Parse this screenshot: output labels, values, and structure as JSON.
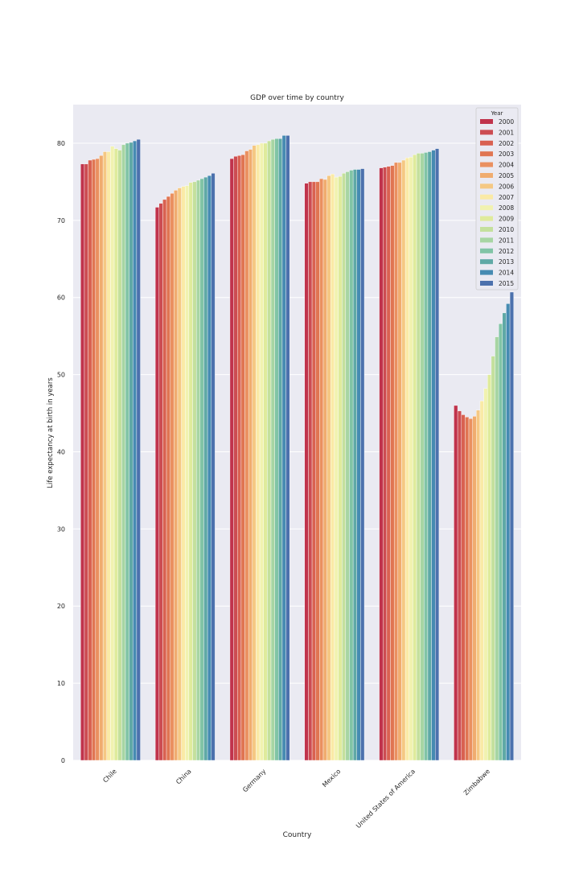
{
  "chart_data": {
    "type": "bar",
    "title": "GDP over time by country",
    "xlabel": "Country",
    "ylabel": "Life expectancy at birth in years",
    "ylim": [
      0,
      85
    ],
    "yticks": [
      0,
      10,
      20,
      30,
      40,
      50,
      60,
      70,
      80
    ],
    "grid": true,
    "legend_placement": "top-right",
    "legend_title": "Year",
    "categories": [
      "Chile",
      "China",
      "Germany",
      "Mexico",
      "United States of America",
      "Zimbabwe"
    ],
    "series": [
      {
        "name": "2000",
        "color": "#c0334c",
        "values": [
          77.3,
          71.7,
          78.0,
          74.8,
          76.8,
          46.0
        ]
      },
      {
        "name": "2001",
        "color": "#cc4c52",
        "values": [
          77.3,
          72.2,
          78.3,
          75.0,
          76.9,
          45.3
        ]
      },
      {
        "name": "2002",
        "color": "#d96151",
        "values": [
          77.8,
          72.7,
          78.4,
          75.0,
          77.0,
          44.8
        ]
      },
      {
        "name": "2003",
        "color": "#e07552",
        "values": [
          77.9,
          73.1,
          78.5,
          75.0,
          77.1,
          44.5
        ]
      },
      {
        "name": "2004",
        "color": "#ea9060",
        "values": [
          78.0,
          73.5,
          79.0,
          75.4,
          77.5,
          44.3
        ]
      },
      {
        "name": "2005",
        "color": "#f0ac6f",
        "values": [
          78.4,
          73.9,
          79.2,
          75.3,
          77.5,
          44.6
        ]
      },
      {
        "name": "2006",
        "color": "#f5c883",
        "values": [
          78.9,
          74.2,
          79.7,
          75.8,
          77.8,
          45.4
        ]
      },
      {
        "name": "2007",
        "color": "#faeaa6",
        "values": [
          78.9,
          74.4,
          79.8,
          76.0,
          78.1,
          46.6
        ]
      },
      {
        "name": "2008",
        "color": "#f1f2b0",
        "values": [
          79.6,
          74.5,
          80.0,
          75.6,
          78.2,
          48.2
        ]
      },
      {
        "name": "2009",
        "color": "#dfeb9c",
        "values": [
          79.3,
          74.9,
          80.0,
          75.7,
          78.5,
          50.0
        ]
      },
      {
        "name": "2010",
        "color": "#c4e09d",
        "values": [
          79.1,
          75.0,
          80.3,
          76.1,
          78.7,
          52.4
        ]
      },
      {
        "name": "2011",
        "color": "#a7d5a3",
        "values": [
          79.8,
          75.2,
          80.5,
          76.3,
          78.7,
          54.9
        ]
      },
      {
        "name": "2012",
        "color": "#81c4a6",
        "values": [
          80.0,
          75.4,
          80.6,
          76.5,
          78.8,
          56.6
        ]
      },
      {
        "name": "2013",
        "color": "#5fa9a6",
        "values": [
          80.1,
          75.6,
          80.6,
          76.6,
          78.9,
          58.0
        ]
      },
      {
        "name": "2014",
        "color": "#468bb2",
        "values": [
          80.3,
          75.8,
          81.0,
          76.6,
          79.1,
          59.2
        ]
      },
      {
        "name": "2015",
        "color": "#4c71ad",
        "values": [
          80.5,
          76.1,
          81.0,
          76.7,
          79.3,
          60.7
        ]
      }
    ]
  }
}
